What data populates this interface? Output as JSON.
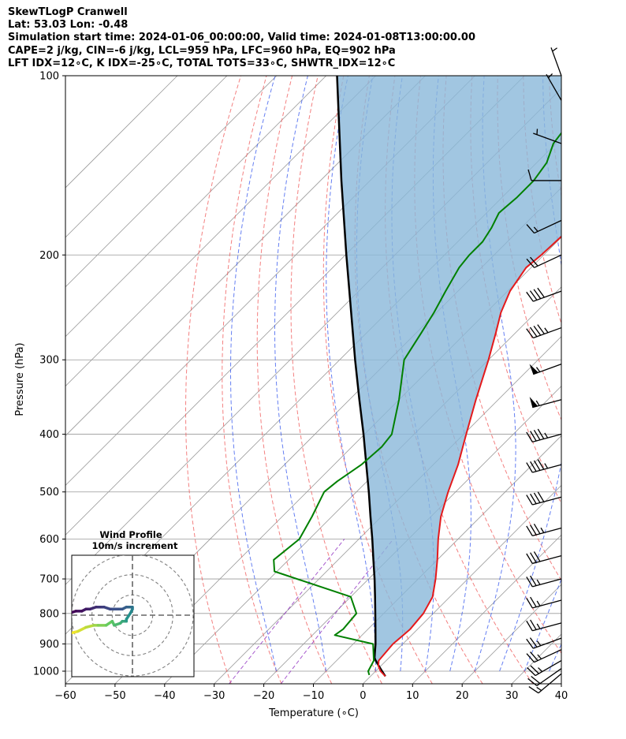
{
  "header": {
    "line1": "SkewTLogP Cranwell",
    "line2": "Lat: 53.03   Lon: -0.48",
    "line3": "Simulation start time: 2024-01-06_00:00:00, Valid time: 2024-01-08T13:00:00.00",
    "line4": "CAPE=2 j/kg, CIN=-6 j/kg, LCL=959 hPa, LFC=960 hPa, EQ=902 hPa",
    "line5": "LFT IDX=12∘C, K IDX=-25∘C, TOTAL TOTS=33∘C, SHWTR_IDX=12∘C"
  },
  "chart_data": {
    "type": "line",
    "title": "SkewTLogP Cranwell",
    "xlabel": "Temperature (∘C)",
    "ylabel": "Pressure (hPa)",
    "xlim": [
      -60,
      40
    ],
    "ylim": [
      1050,
      100
    ],
    "y_scale": "log",
    "skew_degrees": 45,
    "grid": true,
    "x_ticks": [
      -60,
      -50,
      -40,
      -30,
      -20,
      -10,
      0,
      10,
      20,
      30,
      40
    ],
    "x_tick_labels": [
      "−60",
      "−50",
      "−40",
      "−30",
      "−20",
      "−10",
      "0",
      "10",
      "20",
      "30",
      "40"
    ],
    "y_ticks": [
      1000,
      900,
      800,
      700,
      600,
      500,
      400,
      300,
      200,
      100
    ],
    "y_tick_labels": [
      "1000",
      "900",
      "800",
      "700",
      "600",
      "500",
      "400",
      "300",
      "200",
      "100"
    ],
    "colors": {
      "temperature": "#e41a1c",
      "dewpoint": "#008000",
      "parcel": "#000000",
      "cape_fill": "#8ab8da",
      "dry_adiabats": "#f06060",
      "moist_adiabats": "#3f5fef",
      "mixing_ratio": "#9030c0",
      "isotherms": "#999999"
    },
    "series": [
      {
        "name": "temperature",
        "points": [
          [
            1020,
            3.0
          ],
          [
            1000,
            1.0
          ],
          [
            980,
            -0.5
          ],
          [
            960,
            -1.5
          ],
          [
            900,
            -2.0
          ],
          [
            850,
            -1.5
          ],
          [
            800,
            -2.0
          ],
          [
            750,
            -3.5
          ],
          [
            700,
            -6.5
          ],
          [
            650,
            -10.0
          ],
          [
            600,
            -14.0
          ],
          [
            550,
            -18.0
          ],
          [
            500,
            -21.5
          ],
          [
            450,
            -25.0
          ],
          [
            400,
            -29.5
          ],
          [
            350,
            -34.5
          ],
          [
            300,
            -40.0
          ],
          [
            270,
            -44.0
          ],
          [
            250,
            -47.0
          ],
          [
            230,
            -49.5
          ],
          [
            210,
            -51.0
          ],
          [
            200,
            -50.5
          ],
          [
            180,
            -50.0
          ],
          [
            160,
            -49.0
          ],
          [
            140,
            -50.0
          ],
          [
            130,
            -51.5
          ],
          [
            120,
            -53.0
          ],
          [
            110,
            -54.5
          ],
          [
            100,
            -56.5
          ]
        ]
      },
      {
        "name": "dewpoint",
        "points": [
          [
            1015,
            -0.5
          ],
          [
            1000,
            -1.5
          ],
          [
            960,
            -2.5
          ],
          [
            900,
            -6.0
          ],
          [
            870,
            -15.5
          ],
          [
            850,
            -15.0
          ],
          [
            800,
            -15.5
          ],
          [
            750,
            -20.0
          ],
          [
            680,
            -40.5
          ],
          [
            650,
            -43.0
          ],
          [
            600,
            -42.0
          ],
          [
            550,
            -44.0
          ],
          [
            500,
            -46.5
          ],
          [
            480,
            -46.0
          ],
          [
            450,
            -44.5
          ],
          [
            420,
            -44.0
          ],
          [
            400,
            -44.5
          ],
          [
            350,
            -50.0
          ],
          [
            300,
            -57.0
          ],
          [
            270,
            -59.0
          ],
          [
            250,
            -60.5
          ],
          [
            230,
            -62.5
          ],
          [
            210,
            -64.5
          ],
          [
            200,
            -65.0
          ],
          [
            190,
            -65.0
          ],
          [
            180,
            -66.0
          ],
          [
            170,
            -67.5
          ],
          [
            160,
            -67.0
          ],
          [
            150,
            -67.0
          ],
          [
            140,
            -68.0
          ],
          [
            130,
            -70.5
          ],
          [
            120,
            -71.5
          ],
          [
            110,
            -73.0
          ],
          [
            100,
            -75.5
          ]
        ]
      },
      {
        "name": "parcel",
        "points": [
          [
            1020,
            3.0
          ],
          [
            1000,
            1.3
          ],
          [
            980,
            -0.4
          ],
          [
            960,
            -2.1
          ],
          [
            950,
            -2.9
          ],
          [
            900,
            -5.5
          ],
          [
            850,
            -8.5
          ],
          [
            800,
            -11.7
          ],
          [
            750,
            -15.1
          ],
          [
            700,
            -18.8
          ],
          [
            650,
            -22.9
          ],
          [
            600,
            -27.3
          ],
          [
            550,
            -32.2
          ],
          [
            500,
            -37.5
          ],
          [
            450,
            -43.5
          ],
          [
            400,
            -50.2
          ],
          [
            350,
            -58.0
          ],
          [
            300,
            -66.9
          ],
          [
            250,
            -77.2
          ],
          [
            200,
            -89.8
          ],
          [
            150,
            -105.8
          ],
          [
            100,
            -127.8
          ]
        ]
      }
    ],
    "wind_barbs": [
      {
        "p": 1010,
        "speed_kt": 15,
        "dir_deg": 230
      },
      {
        "p": 990,
        "speed_kt": 20,
        "dir_deg": 235
      },
      {
        "p": 960,
        "speed_kt": 25,
        "dir_deg": 240
      },
      {
        "p": 920,
        "speed_kt": 25,
        "dir_deg": 245
      },
      {
        "p": 880,
        "speed_kt": 25,
        "dir_deg": 250
      },
      {
        "p": 830,
        "speed_kt": 25,
        "dir_deg": 255
      },
      {
        "p": 760,
        "speed_kt": 25,
        "dir_deg": 255
      },
      {
        "p": 700,
        "speed_kt": 25,
        "dir_deg": 255
      },
      {
        "p": 640,
        "speed_kt": 30,
        "dir_deg": 255
      },
      {
        "p": 575,
        "speed_kt": 35,
        "dir_deg": 255
      },
      {
        "p": 510,
        "speed_kt": 40,
        "dir_deg": 255
      },
      {
        "p": 450,
        "speed_kt": 45,
        "dir_deg": 255
      },
      {
        "p": 400,
        "speed_kt": 45,
        "dir_deg": 255
      },
      {
        "p": 350,
        "speed_kt": 55,
        "dir_deg": 255
      },
      {
        "p": 305,
        "speed_kt": 55,
        "dir_deg": 250
      },
      {
        "p": 265,
        "speed_kt": 45,
        "dir_deg": 250
      },
      {
        "p": 230,
        "speed_kt": 40,
        "dir_deg": 250
      },
      {
        "p": 200,
        "speed_kt": 20,
        "dir_deg": 245
      },
      {
        "p": 175,
        "speed_kt": 15,
        "dir_deg": 245
      },
      {
        "p": 150,
        "speed_kt": 10,
        "dir_deg": 270
      },
      {
        "p": 130,
        "speed_kt": 5,
        "dir_deg": 290
      },
      {
        "p": 110,
        "speed_kt": 5,
        "dir_deg": 330
      },
      {
        "p": 100,
        "speed_kt": 5,
        "dir_deg": 340
      }
    ],
    "inset": {
      "title_line1": "Wind Profile",
      "title_line2": "10m/s increment",
      "rings_mps": [
        10,
        20,
        30
      ],
      "range_mps": 30,
      "hodograph_uv": [
        [
          -31,
          -9
        ],
        [
          -27,
          -8
        ],
        [
          -23,
          -6
        ],
        [
          -19,
          -5
        ],
        [
          -17,
          -5
        ],
        [
          -13,
          -5
        ],
        [
          -10,
          -3
        ],
        [
          -9,
          -5
        ],
        [
          -6,
          -4
        ],
        [
          -5,
          -3
        ],
        [
          -3,
          -3
        ],
        [
          -3,
          -2
        ],
        [
          -1,
          1
        ],
        [
          0,
          3
        ],
        [
          0,
          4
        ],
        [
          -1,
          4
        ],
        [
          -2,
          4
        ],
        [
          -3,
          4
        ],
        [
          -5,
          3
        ],
        [
          -7,
          3
        ],
        [
          -11,
          3
        ],
        [
          -14,
          4
        ],
        [
          -16,
          4
        ],
        [
          -18,
          4
        ],
        [
          -21,
          3
        ],
        [
          -23,
          3
        ],
        [
          -25,
          2
        ],
        [
          -28,
          2
        ],
        [
          -31,
          1
        ]
      ]
    }
  }
}
